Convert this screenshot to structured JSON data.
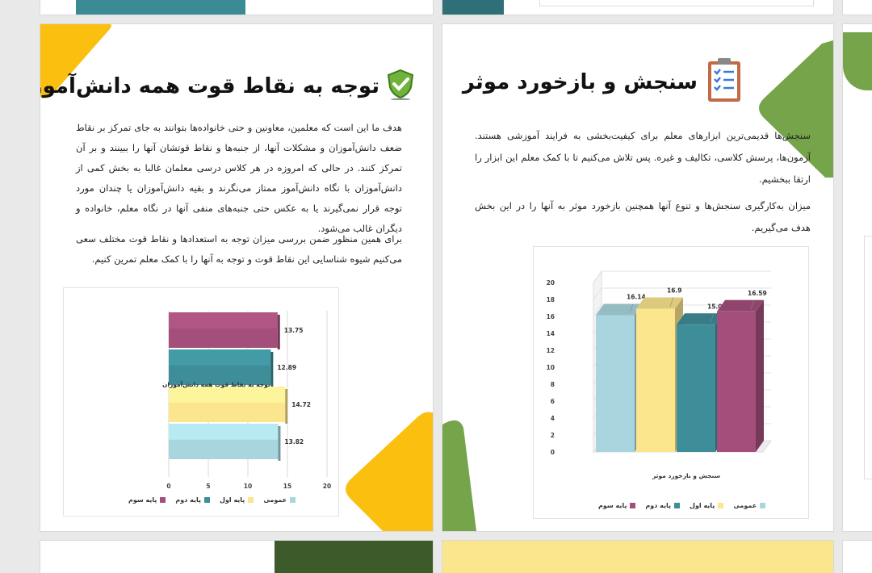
{
  "left_slide": {
    "title": "توجه به نقاط قوت همه دانش‌آموزان",
    "paragraph1": "هدف ما این است که معلمین، معاونین و حتی خانواده‌ها بتوانند به جای تمرکز بر نقاط ضعف دانش‌آموزان و مشکلات آنها، از جنبه‌ها و نقاط قوتشان آنها را ببینند و بر آن تمرکز کنند. در حالی که امروزه در هر کلاس درسی معلمان غالبا به بخش کمی از دانش‌آموزان با نگاه دانش‌آموز ممتاز می‌نگرند و بقیه دانش‌آموزان یا چندان مورد توجه قرار نمی‌گیرند یا به عکس حتی جنبه‌های منفی آنها در نگاه معلم، خانواده و دیگران غالب می‌شود.",
    "paragraph2": "برای همین منظور ضمن بررسی میزان توجه به استعدادها و نقاط قوت مختلف سعی می‌کنیم شیوه شناسایی این نقاط قوت و توجه به آنها را با کمک معلم تمرین کنیم.",
    "chart_data": {
      "type": "bar",
      "orientation": "horizontal",
      "category_label": "توجه به نقاط قوت همه دانش‌آموزان",
      "xlim": [
        0,
        20
      ],
      "x_ticks": [
        "0",
        "5",
        "10",
        "15",
        "20"
      ],
      "series": [
        {
          "name": "عمومی",
          "value": 13.82,
          "label": "13.82",
          "color": "#a9d6de"
        },
        {
          "name": "پایه اول",
          "value": 14.72,
          "label": "14.72",
          "color": "#fbe68e"
        },
        {
          "name": "پایه دوم",
          "value": 12.89,
          "label": "12.89",
          "color": "#3d8e99"
        },
        {
          "name": "پایه سوم",
          "value": 13.75,
          "label": "13.75",
          "color": "#a44f7b"
        }
      ]
    }
  },
  "right_slide": {
    "title": "سنجش و بازخورد موثر",
    "paragraph1": "سنجش‌ها قدیمی‌ترین ابزارهای معلم برای کیفیت‌بخشی به فرایند آموزشی هستند. آزمون‌ها، پرسش کلاسی، تکالیف و غیره. پس تلاش می‌کنیم تا با کمک معلم این ابزار را ارتقا ببخشیم.",
    "paragraph2": "میزان به‌کارگیری سنجش‌ها و تنوع آنها همچنین بازخورد موثر به آنها را در این بخش هدف می‌گیریم.",
    "chart_data": {
      "type": "bar",
      "orientation": "vertical-3d",
      "xlabel": "سنجش و بازخورد موثر",
      "ylim": [
        0,
        20
      ],
      "y_ticks": [
        "0",
        "2",
        "4",
        "6",
        "8",
        "10",
        "12",
        "14",
        "16",
        "18",
        "20"
      ],
      "series": [
        {
          "name": "عمومی",
          "value": 16.14,
          "label": "16.14",
          "color": "#a9d6de"
        },
        {
          "name": "پایه اول",
          "value": 16.9,
          "label": "16.9",
          "color": "#fbe68e"
        },
        {
          "name": "پایه دوم",
          "value": 15.02,
          "label": "15.02",
          "color": "#3d8e99"
        },
        {
          "name": "پایه سوم",
          "value": 16.59,
          "label": "16.59",
          "color": "#a44f7b"
        }
      ]
    }
  },
  "colors": {
    "yellow": "#fbbf10",
    "green": "#76a44a",
    "teal": "#3b8b96",
    "dark_green": "#3d5a2a",
    "magenta": "#a44f7b"
  }
}
